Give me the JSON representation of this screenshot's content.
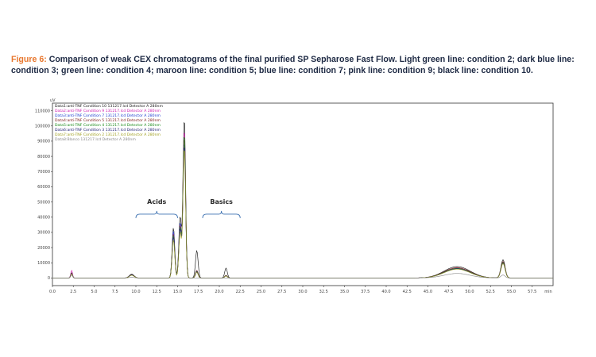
{
  "caption": {
    "lead": "Figure 6:",
    "text": "Comparison of weak CEX chromatograms of the final purified SP Sepharose Fast Flow. Light green line: condition 2; dark blue line: condition 3; green line: condition 4; maroon line: condition 5; blue line: condition 7; pink line: condition 9; black line: condition 10."
  },
  "chart_data": {
    "type": "line",
    "xlabel": "min",
    "ylabel": "uV",
    "xlim": [
      0,
      60
    ],
    "ylim": [
      -5000,
      115000
    ],
    "x_ticks": [
      "0.0",
      "2.5",
      "5.0",
      "7.5",
      "10.0",
      "12.5",
      "15.0",
      "17.5",
      "20.0",
      "22.5",
      "25.0",
      "27.5",
      "30.0",
      "32.5",
      "35.0",
      "37.5",
      "40.0",
      "42.5",
      "45.0",
      "47.5",
      "50.0",
      "52.5",
      "55.0",
      "57.5",
      "min"
    ],
    "y_ticks": [
      "0",
      "10000",
      "20000",
      "30000",
      "40000",
      "50000",
      "60000",
      "70000",
      "80000",
      "90000",
      "100000",
      "110000"
    ],
    "grid": false,
    "legend_position": "top-left",
    "legend": [
      {
        "label": "Data1:anti-TNF Condition 10 131217.lcd Detector A 280nm",
        "color": "#111111"
      },
      {
        "label": "Data2:anti-TNF Condition 9 131217.lcd Detector A 280nm",
        "color": "#d020b0"
      },
      {
        "label": "Data3:anti-TNF Condition 7 131217.lcd Detector A 280nm",
        "color": "#2040d0"
      },
      {
        "label": "Data4:anti-TNF Condition 5 131217.lcd Detector A 280nm",
        "color": "#7a1a1a"
      },
      {
        "label": "Data5:anti-TNF Condition 4 131217.lcd Detector A 280nm",
        "color": "#1a8a1a"
      },
      {
        "label": "Data6:anti-TNF Condition 3 131217.lcd Detector A 280nm",
        "color": "#1a1a70"
      },
      {
        "label": "Data7:anti-TNF Condition 2 131217.lcd Detector A 280nm",
        "color": "#a0a020"
      },
      {
        "label": "Data8:Blanco 131217.lcd Detector A 280nm",
        "color": "#888888"
      }
    ],
    "annotations": [
      {
        "label": "Acids",
        "x_range": [
          10.0,
          15.0
        ]
      },
      {
        "label": "Basics",
        "x_range": [
          18.0,
          22.5
        ]
      }
    ],
    "series": [
      {
        "color": "#111111",
        "peaks": [
          [
            2.3,
            3500
          ],
          [
            9.5,
            2500
          ],
          [
            14.5,
            33000
          ],
          [
            15.3,
            40000
          ],
          [
            15.8,
            105000
          ],
          [
            17.3,
            18000
          ],
          [
            20.8,
            6500
          ],
          [
            48.5,
            7500
          ],
          [
            54.0,
            12000
          ]
        ]
      },
      {
        "color": "#d020b0",
        "peaks": [
          [
            2.3,
            5000
          ],
          [
            9.5,
            2000
          ],
          [
            14.5,
            30000
          ],
          [
            15.3,
            35000
          ],
          [
            15.8,
            98000
          ],
          [
            17.3,
            4000
          ],
          [
            20.8,
            1500
          ],
          [
            48.5,
            6500
          ],
          [
            54.0,
            10500
          ]
        ]
      },
      {
        "color": "#2040d0",
        "peaks": [
          [
            2.3,
            3000
          ],
          [
            9.5,
            2000
          ],
          [
            14.5,
            31000
          ],
          [
            15.3,
            36000
          ],
          [
            15.8,
            90000
          ],
          [
            17.3,
            4500
          ],
          [
            20.8,
            1500
          ],
          [
            48.5,
            6200
          ],
          [
            54.0,
            10000
          ]
        ]
      },
      {
        "color": "#7a1a1a",
        "peaks": [
          [
            2.3,
            3200
          ],
          [
            9.5,
            2200
          ],
          [
            14.5,
            29000
          ],
          [
            15.3,
            34000
          ],
          [
            15.8,
            93000
          ],
          [
            17.3,
            5000
          ],
          [
            20.8,
            1800
          ],
          [
            48.5,
            6800
          ],
          [
            54.0,
            10800
          ]
        ]
      },
      {
        "color": "#1a8a1a",
        "peaks": [
          [
            2.3,
            3000
          ],
          [
            9.5,
            2000
          ],
          [
            14.5,
            28000
          ],
          [
            15.3,
            33000
          ],
          [
            15.8,
            95000
          ],
          [
            17.3,
            4200
          ],
          [
            20.8,
            1500
          ],
          [
            48.5,
            6300
          ],
          [
            54.0,
            10200
          ]
        ]
      },
      {
        "color": "#1a1a70",
        "peaks": [
          [
            2.3,
            3100
          ],
          [
            9.5,
            2100
          ],
          [
            14.5,
            27000
          ],
          [
            15.3,
            32000
          ],
          [
            15.8,
            88000
          ],
          [
            17.3,
            4000
          ],
          [
            20.8,
            1400
          ],
          [
            48.5,
            6000
          ],
          [
            54.0,
            9800
          ]
        ]
      },
      {
        "color": "#a0a020",
        "peaks": [
          [
            2.3,
            2800
          ],
          [
            9.5,
            1800
          ],
          [
            14.5,
            25000
          ],
          [
            15.3,
            30000
          ],
          [
            15.8,
            86000
          ],
          [
            17.3,
            3800
          ],
          [
            20.8,
            1300
          ],
          [
            48.5,
            5800
          ],
          [
            54.0,
            9500
          ]
        ]
      },
      {
        "color": "#888888",
        "peaks": [
          [
            2.3,
            2000
          ],
          [
            9.5,
            500
          ],
          [
            48.5,
            3000
          ],
          [
            54.0,
            2000
          ]
        ]
      }
    ]
  }
}
